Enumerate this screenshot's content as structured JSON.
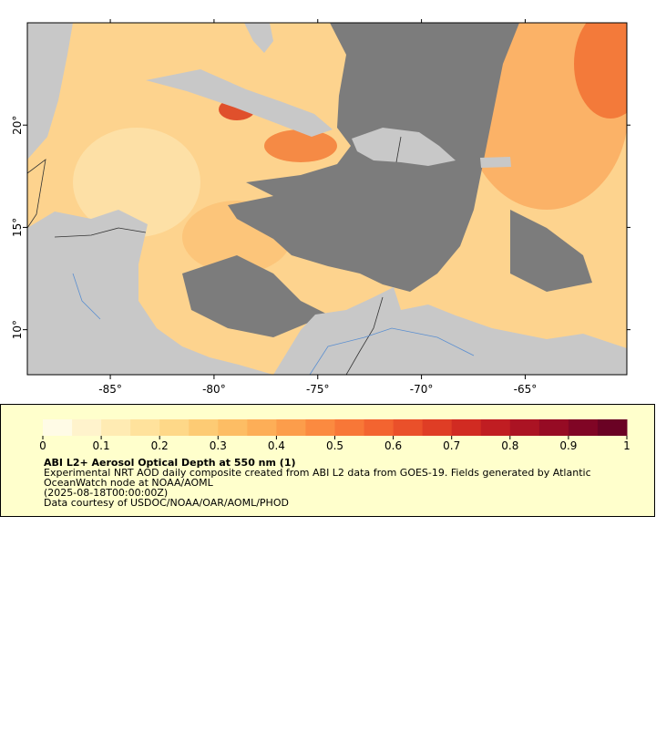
{
  "map": {
    "xlim": [
      -89,
      -60.1
    ],
    "ylim": [
      7.8,
      25
    ],
    "xticks": [
      {
        "value": -85,
        "label": "-85°"
      },
      {
        "value": -80,
        "label": "-80°"
      },
      {
        "value": -75,
        "label": "-75°"
      },
      {
        "value": -70,
        "label": "-70°"
      },
      {
        "value": -65,
        "label": "-65°"
      }
    ],
    "yticks": [
      {
        "value": 10,
        "label": "10°"
      },
      {
        "value": 15,
        "label": "15°"
      },
      {
        "value": 20,
        "label": "20°"
      }
    ]
  },
  "colorbar": {
    "lim": [
      0,
      1
    ],
    "ticks": [
      0,
      0.1,
      0.2,
      0.3,
      0.4,
      0.5,
      0.6,
      0.7,
      0.8,
      0.9,
      1
    ],
    "colors": [
      "#fffbe6",
      "#fff3cc",
      "#ffebb3",
      "#ffe29c",
      "#fed888",
      "#fdcb74",
      "#fdbd64",
      "#fdae57",
      "#fc9d4b",
      "#fb8a40",
      "#f87737",
      "#f36430",
      "#ea502a",
      "#df3d25",
      "#d12b22",
      "#c01d22",
      "#ab1323",
      "#960b24",
      "#800525",
      "#6a0224"
    ]
  },
  "legend": {
    "title": "ABI L2+ Aerosol Optical Depth at 550 nm (1)",
    "lines": [
      "Experimental NRT AOD daily composite created from ABI L2 data from GOES-19. Fields generated by Atlantic",
      "OceanWatch node at NOAA/AOML",
      "(2025-08-18T00:00:00Z)",
      "Data courtesy of USDOC/NOAA/OAR/AOML/PHOD"
    ]
  }
}
